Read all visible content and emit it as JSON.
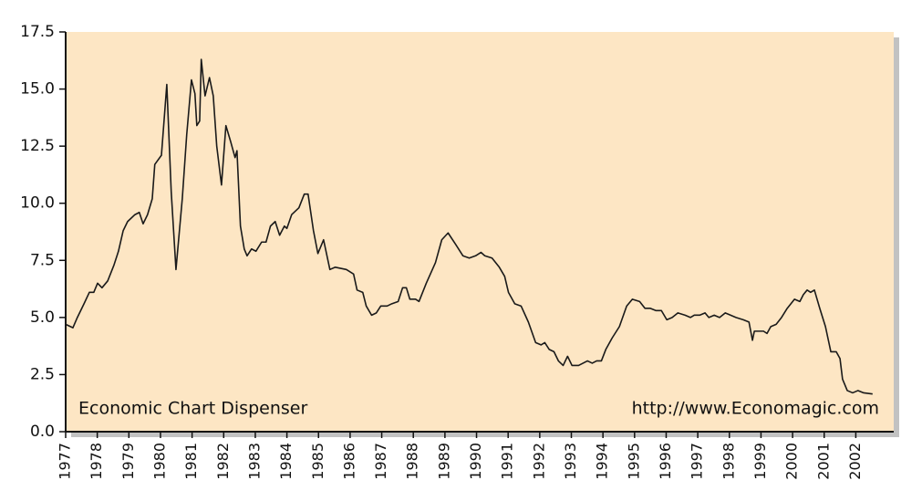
{
  "chart_data": {
    "type": "line",
    "annotations": [
      "Economic Chart Dispenser",
      "http://www.Economagic.com"
    ],
    "xlim": [
      1977,
      2003.2
    ],
    "xticks": [
      1977,
      1978,
      1979,
      1980,
      1981,
      1982,
      1983,
      1984,
      1985,
      1986,
      1987,
      1988,
      1989,
      1990,
      1991,
      1992,
      1993,
      1994,
      1995,
      1996,
      1997,
      1998,
      1999,
      2000,
      2001,
      2002
    ],
    "ylim": [
      0,
      17.5
    ],
    "yticks": [
      {
        "value": 0,
        "label": "0.0"
      },
      2.5,
      {
        "value": 5,
        "label": "5.0"
      },
      7.5,
      {
        "value": 10,
        "label": "10.0"
      },
      12.5,
      {
        "value": 15,
        "label": "15.0"
      },
      17.5
    ],
    "grid": false,
    "background": "#fde6c4",
    "series": [
      {
        "color": "#1a1a1a",
        "x": [
          1977.0,
          1977.23,
          1977.37,
          1977.58,
          1977.75,
          1977.89,
          1978.01,
          1978.15,
          1978.33,
          1978.53,
          1978.67,
          1978.82,
          1978.96,
          1979.19,
          1979.33,
          1979.45,
          1979.59,
          1979.74,
          1979.82,
          1980.03,
          1980.2,
          1980.34,
          1980.49,
          1980.69,
          1980.83,
          1980.98,
          1981.09,
          1981.15,
          1981.24,
          1981.29,
          1981.41,
          1981.55,
          1981.67,
          1981.78,
          1981.93,
          1982.07,
          1982.22,
          1982.36,
          1982.42,
          1982.53,
          1982.65,
          1982.74,
          1982.88,
          1983.02,
          1983.2,
          1983.34,
          1983.48,
          1983.63,
          1983.77,
          1983.92,
          1984.0,
          1984.15,
          1984.38,
          1984.55,
          1984.67,
          1984.84,
          1984.98,
          1985.16,
          1985.36,
          1985.53,
          1985.88,
          1986.11,
          1986.22,
          1986.4,
          1986.51,
          1986.68,
          1986.83,
          1986.97,
          1987.17,
          1987.32,
          1987.52,
          1987.66,
          1987.78,
          1987.89,
          1988.07,
          1988.18,
          1988.41,
          1988.7,
          1988.9,
          1989.1,
          1989.34,
          1989.57,
          1989.77,
          1989.97,
          1990.14,
          1990.26,
          1990.49,
          1990.72,
          1990.89,
          1991.01,
          1991.21,
          1991.41,
          1991.64,
          1991.87,
          1992.04,
          1992.16,
          1992.3,
          1992.45,
          1992.59,
          1992.74,
          1992.88,
          1993.02,
          1993.23,
          1993.37,
          1993.51,
          1993.66,
          1993.8,
          1993.95,
          1994.09,
          1994.29,
          1994.52,
          1994.75,
          1994.93,
          1995.16,
          1995.33,
          1995.5,
          1995.68,
          1995.85,
          1996.02,
          1996.19,
          1996.37,
          1996.6,
          1996.77,
          1996.89,
          1997.06,
          1997.23,
          1997.35,
          1997.52,
          1997.69,
          1997.87,
          1998.04,
          1998.21,
          1998.44,
          1998.62,
          1998.73,
          1998.79,
          1998.96,
          1999.08,
          1999.19,
          1999.31,
          1999.48,
          1999.65,
          1999.83,
          2000.06,
          2000.23,
          2000.34,
          2000.46,
          2000.57,
          2000.69,
          2000.86,
          2001.04,
          2001.21,
          2001.38,
          2001.5,
          2001.58,
          2001.73,
          2001.9,
          2002.07,
          2002.25,
          2002.53
        ],
        "values": [
          4.7,
          4.55,
          5.0,
          5.6,
          6.1,
          6.1,
          6.5,
          6.3,
          6.6,
          7.3,
          7.9,
          8.8,
          9.2,
          9.5,
          9.6,
          9.1,
          9.5,
          10.2,
          11.7,
          12.1,
          15.2,
          10.5,
          7.1,
          10.2,
          13.0,
          15.4,
          14.8,
          13.4,
          13.6,
          16.3,
          14.7,
          15.5,
          14.7,
          12.5,
          10.8,
          13.4,
          12.7,
          12.0,
          12.3,
          9.0,
          8.0,
          7.7,
          8.0,
          7.9,
          8.3,
          8.3,
          9.0,
          9.2,
          8.6,
          9.0,
          8.9,
          9.5,
          9.8,
          10.4,
          10.4,
          8.8,
          7.8,
          8.4,
          7.1,
          7.2,
          7.1,
          6.9,
          6.2,
          6.1,
          5.5,
          5.1,
          5.2,
          5.5,
          5.5,
          5.6,
          5.7,
          6.3,
          6.3,
          5.8,
          5.8,
          5.7,
          6.5,
          7.4,
          8.4,
          8.7,
          8.2,
          7.7,
          7.6,
          7.7,
          7.85,
          7.7,
          7.6,
          7.2,
          6.8,
          6.1,
          5.6,
          5.5,
          4.8,
          3.9,
          3.8,
          3.9,
          3.6,
          3.5,
          3.1,
          2.9,
          3.3,
          2.9,
          2.9,
          3.0,
          3.1,
          3.0,
          3.1,
          3.1,
          3.6,
          4.1,
          4.6,
          5.5,
          5.8,
          5.7,
          5.4,
          5.4,
          5.3,
          5.3,
          4.9,
          5.0,
          5.2,
          5.1,
          5.0,
          5.1,
          5.1,
          5.2,
          5.0,
          5.1,
          5.0,
          5.2,
          5.1,
          5.0,
          4.9,
          4.8,
          4.0,
          4.4,
          4.4,
          4.4,
          4.3,
          4.6,
          4.7,
          5.0,
          5.4,
          5.8,
          5.7,
          6.0,
          6.2,
          6.1,
          6.2,
          5.4,
          4.6,
          3.5,
          3.5,
          3.2,
          2.3,
          1.8,
          1.7,
          1.8,
          1.7,
          1.65
        ]
      }
    ]
  }
}
